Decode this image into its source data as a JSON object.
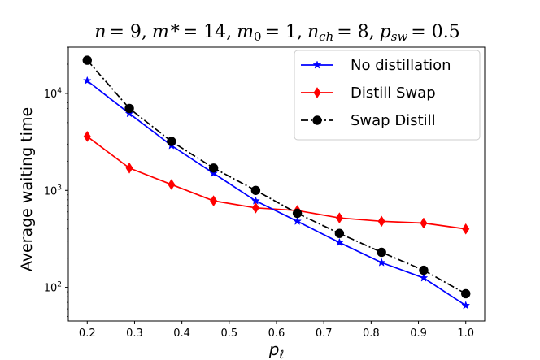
{
  "chart_data": {
    "type": "line",
    "title": "n = 9, m* = 14, m₀ = 1, nₕ = 8, pₛᵤ = 0.5",
    "title_parts": {
      "n": "n",
      "n_val": "= 9,",
      "mstar": "m",
      "mstar_sup": "*",
      "mstar_val": "= 14,",
      "m0": "m",
      "m0_sub": "0",
      "m0_val": "= 1,",
      "nch": "n",
      "nch_sub": "ch",
      "nch_val": "= 8,",
      "psw": "p",
      "psw_sub": "sw",
      "psw_val": "= 0.5"
    },
    "xlabel": "p",
    "xlabel_sub": "ℓ",
    "ylabel": "Average waiting time",
    "x": [
      0.2,
      0.289,
      0.378,
      0.467,
      0.556,
      0.644,
      0.733,
      0.822,
      0.911,
      1.0
    ],
    "xlim": [
      0.16,
      1.04
    ],
    "ylim_log": [
      45,
      30000
    ],
    "yscale": "log",
    "xticks": [
      "0.2",
      "0.3",
      "0.4",
      "0.5",
      "0.6",
      "0.7",
      "0.8",
      "0.9",
      "1.0"
    ],
    "xtick_values": [
      0.2,
      0.3,
      0.4,
      0.5,
      0.6,
      0.7,
      0.8,
      0.9,
      1.0
    ],
    "yticks": [
      {
        "value": 100,
        "base": "10",
        "exp": "2"
      },
      {
        "value": 1000,
        "base": "10",
        "exp": "3"
      },
      {
        "value": 10000,
        "base": "10",
        "exp": "4"
      }
    ],
    "grid": false,
    "legend_position": "top-right",
    "series": [
      {
        "name": "No distillation",
        "color": "#0000ff",
        "marker": "star",
        "linestyle": "solid",
        "values": [
          13500,
          6200,
          2900,
          1500,
          780,
          480,
          290,
          180,
          125,
          65
        ]
      },
      {
        "name": "Distill Swap",
        "color": "#ff0000",
        "marker": "thin-diamond",
        "linestyle": "solid",
        "values": [
          3600,
          1700,
          1150,
          780,
          660,
          620,
          520,
          480,
          460,
          400
        ]
      },
      {
        "name": "Swap Distill",
        "color": "#000000",
        "marker": "circle",
        "linestyle": "dashdot",
        "values": [
          22000,
          7000,
          3200,
          1700,
          1000,
          580,
          360,
          230,
          150,
          86
        ]
      }
    ]
  }
}
